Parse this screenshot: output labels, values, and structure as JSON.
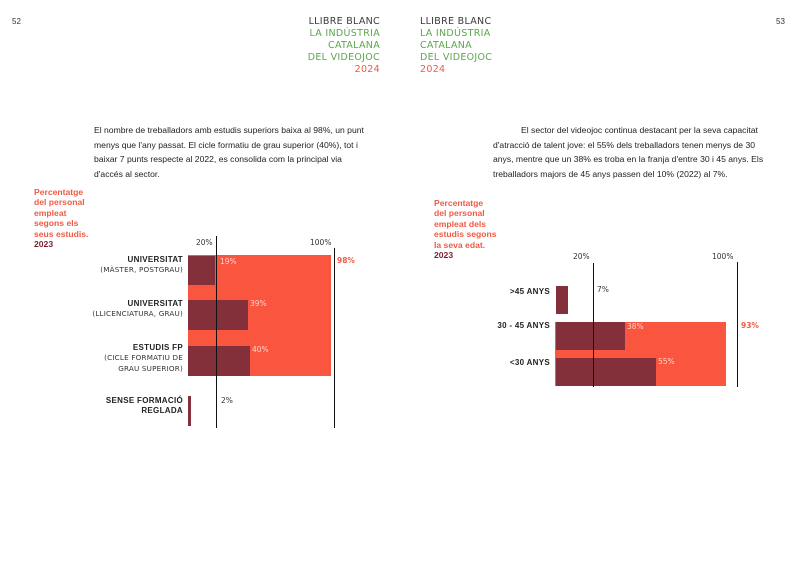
{
  "page_left_number": "52",
  "page_right_number": "53",
  "header": {
    "line1": "LLIBRE BLANC",
    "line2": "LA INDÚSTRIA",
    "line3": "CATALANA",
    "line4": "DEL VIDEOJOC",
    "year": "2024"
  },
  "colors": {
    "accent_red": "#f9553f",
    "dark_red": "#84303a",
    "green": "#5aa84a"
  },
  "left": {
    "paragraph": "El nombre de treballadors amb estudis superiors baixa al 98%, un punt menys que l'any passat. El cicle formatiu de grau superior (40%), tot i baixar 7 punts respecte al 2022, es consolida com la principal via d'accés al sector.",
    "caption_lines": [
      "Percentatge",
      "del personal",
      "empleat",
      "segons els",
      "seus estudis."
    ],
    "caption_year": "2023",
    "chart": {
      "tick_low": "20%",
      "tick_high": "100%",
      "total_label": "98%",
      "categories": [
        {
          "name": "UNIVERSITAT",
          "sub": "(MÀSTER, POSTGRAU)",
          "label": "19%"
        },
        {
          "name": "UNIVERSITAT",
          "sub": "(LLICENCIATURA, GRAU)",
          "label": "39%"
        },
        {
          "name": "ESTUDIS FP",
          "sub": "(CICLE FORMATIU DE GRAU SUPERIOR)",
          "sub1": "(CICLE FORMATIU DE",
          "sub2": "GRAU SUPERIOR)",
          "label": "40%"
        },
        {
          "name": "SENSE FORMACIÓ",
          "name2": "REGLADA",
          "label": "2%"
        }
      ]
    }
  },
  "right": {
    "paragraph": "El sector del videojoc continua destacant per la seva capacitat d'atracció de talent jove: el 55% dels treballadors tenen menys de 30 anys, mentre que un 38% es troba en la franja d'entre 30 i 45 anys. Els treballadors majors de 45 anys passen del 10% (2022) al 7%.",
    "caption_lines": [
      "Percentatge",
      "del personal",
      "empleat dels",
      "estudis segons",
      "la seva edat."
    ],
    "caption_year": "2023",
    "chart": {
      "tick_low": "20%",
      "tick_high": "100%",
      "total_label": "93%",
      "categories": [
        {
          "name": ">45 ANYS",
          "label": "7%"
        },
        {
          "name": "30 - 45 ANYS",
          "label": "38%"
        },
        {
          "name": "<30 ANYS",
          "label": "55%"
        }
      ]
    }
  },
  "chart_data": [
    {
      "type": "bar",
      "categories": [
        "UNIVERSITAT (MÀSTER, POSTGRAU)",
        "UNIVERSITAT (LLICENCIATURA, GRAU)",
        "ESTUDIS FP (CICLE FORMATIU DE GRAU SUPERIOR)",
        "SENSE FORMACIÓ REGLADA"
      ],
      "values": [
        19,
        39,
        40,
        2
      ],
      "total": 98,
      "title": "Percentatge del personal empleat segons els seus estudis. 2023",
      "reference_lines": [
        20,
        100
      ]
    },
    {
      "type": "bar",
      "categories": [
        ">45 ANYS",
        "30 - 45 ANYS",
        "<30 ANYS"
      ],
      "values": [
        7,
        38,
        55
      ],
      "total": 93,
      "title": "Percentatge del personal empleat dels estudis segons la seva edat. 2023",
      "reference_lines": [
        20,
        100
      ]
    }
  ]
}
